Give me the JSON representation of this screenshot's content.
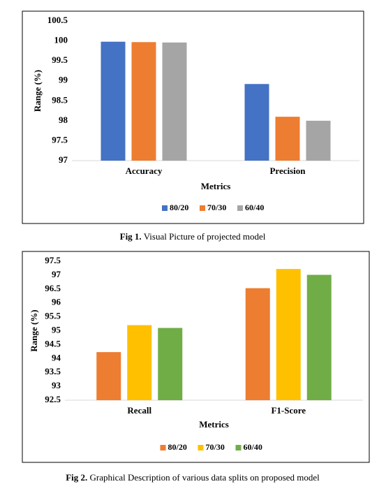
{
  "chart_data": [
    {
      "type": "bar",
      "categories": [
        "Accuracy",
        "Precision"
      ],
      "x_label": "Metrics",
      "y_label": "Range (%)",
      "series": [
        {
          "name": "80/20",
          "color": "#4472c4",
          "values": [
            99.98,
            98.92
          ]
        },
        {
          "name": "70/30",
          "color": "#ed7d31",
          "values": [
            99.97,
            98.1
          ]
        },
        {
          "name": "60/40",
          "color": "#a5a5a5",
          "values": [
            99.96,
            98.0
          ]
        }
      ],
      "ylim": [
        97,
        100.5
      ],
      "yticks": [
        97,
        97.5,
        98,
        98.5,
        99,
        99.5,
        100,
        100.5
      ],
      "legend": "bottom"
    },
    {
      "type": "bar",
      "categories": [
        "Recall",
        "F1-Score"
      ],
      "x_label": "Metrics",
      "y_label": "Range (%)",
      "series": [
        {
          "name": "80/20",
          "color": "#ed7d31",
          "values": [
            94.23,
            96.53
          ]
        },
        {
          "name": "70/30",
          "color": "#ffc000",
          "values": [
            95.2,
            97.22
          ]
        },
        {
          "name": "60/40",
          "color": "#70ad47",
          "values": [
            95.1,
            97.01
          ]
        }
      ],
      "ylim": [
        92.5,
        97.5
      ],
      "yticks": [
        92.5,
        93,
        93.5,
        94,
        94.5,
        95,
        95.5,
        96,
        96.5,
        97,
        97.5
      ],
      "legend": "bottom"
    }
  ],
  "captions": [
    {
      "label": "Fig  1.",
      "text": "Visual Picture of projected model"
    },
    {
      "label": "Fig  2.",
      "text": "Graphical Description of various data splits on proposed model"
    }
  ]
}
